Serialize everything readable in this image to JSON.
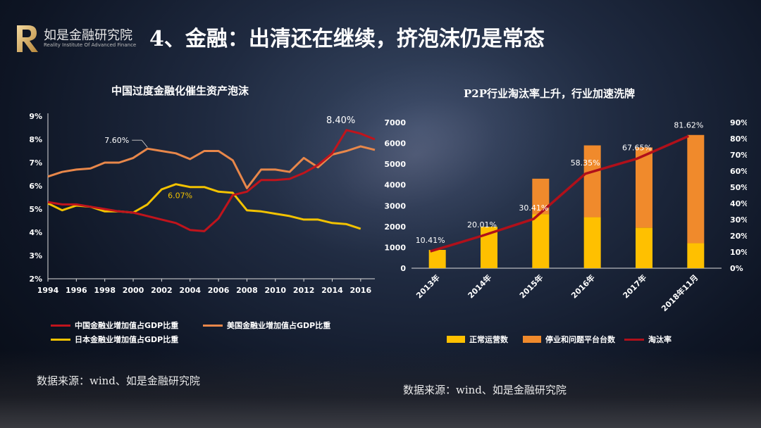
{
  "header": {
    "logo_name": "如是金融研究院",
    "logo_sub": "Reality Institute Of Advanced Finance",
    "title": "4、金融：出清还在继续，挤泡沫仍是常态"
  },
  "left_chart": {
    "title": "中国过度金融化催生资产泡沫",
    "source": "数据来源：wind、如是金融研究院"
  },
  "right_chart": {
    "title": "P2P行业淘汰率上升，行业加速洗牌",
    "source": "数据来源：wind、如是金融研究院"
  },
  "colors": {
    "china": "#c0141c",
    "usa": "#e8874a",
    "japan": "#f2c200",
    "normal": "#ffc000",
    "problem": "#f08a2c",
    "rate": "#b0101a"
  },
  "chart_data": [
    {
      "type": "line",
      "x": [
        1994,
        1995,
        1996,
        1997,
        1998,
        1999,
        2000,
        2001,
        2002,
        2003,
        2004,
        2005,
        2006,
        2007,
        2008,
        2009,
        2010,
        2011,
        2012,
        2013,
        2014,
        2015,
        2016,
        2017
      ],
      "xticks": [
        "1994",
        "1996",
        "1998",
        "2000",
        "2002",
        "2004",
        "2006",
        "2008",
        "2010",
        "2012",
        "2014",
        "2016"
      ],
      "yticks": [
        "2%",
        "3%",
        "4%",
        "5%",
        "6%",
        "7%",
        "8%",
        "9%"
      ],
      "ylim": [
        2,
        9
      ],
      "series": [
        {
          "name": "中国金融业增加值占GDP比重",
          "values": [
            5.3,
            5.2,
            5.2,
            5.1,
            5.0,
            4.9,
            4.85,
            4.7,
            4.55,
            4.4,
            4.1,
            4.05,
            4.6,
            5.6,
            5.75,
            6.25,
            6.25,
            6.3,
            6.55,
            6.9,
            7.4,
            8.4,
            8.25,
            8.0
          ]
        },
        {
          "name": "美国金融业增加值占GDP比重",
          "values": [
            6.4,
            6.6,
            6.7,
            6.75,
            7.0,
            7.0,
            7.2,
            7.6,
            7.5,
            7.4,
            7.15,
            7.5,
            7.5,
            7.1,
            5.9,
            6.7,
            6.7,
            6.6,
            7.2,
            6.8,
            7.35,
            7.5,
            7.7,
            7.55
          ]
        },
        {
          "name": "日本金融业增加值占GDP比重",
          "values": [
            5.25,
            4.95,
            5.15,
            5.1,
            4.9,
            4.9,
            4.85,
            5.2,
            5.85,
            6.07,
            5.95,
            5.95,
            5.75,
            5.7,
            4.95,
            4.9,
            4.8,
            4.7,
            4.55,
            4.55,
            4.4,
            4.35,
            4.15,
            null
          ]
        }
      ],
      "annotations": [
        {
          "label": "7.60%",
          "x": 2001,
          "y": 7.6
        },
        {
          "label": "6.07%",
          "x": 2003,
          "y": 6.07
        },
        {
          "label": "8.40%",
          "x": 2015,
          "y": 8.4
        }
      ]
    },
    {
      "type": "bar",
      "categories": [
        "2013年",
        "2014年",
        "2015年",
        "2016年",
        "2017年",
        "2018年11月"
      ],
      "series": [
        {
          "name": "正常运营数",
          "values": [
            880,
            1990,
            2600,
            2450,
            1950,
            1200
          ]
        },
        {
          "name": "停业和问题平台台数",
          "values": [
            0,
            0,
            1700,
            3450,
            3850,
            5200
          ]
        },
        {
          "name": "淘汰率",
          "values": [
            10.41,
            20.01,
            30.41,
            58.35,
            67.65,
            81.62
          ]
        }
      ],
      "rate_labels": [
        "10.41%",
        "20.01%",
        "30.41%",
        "58.35%",
        "67.65%",
        "81.62%"
      ],
      "y_left_ticks": [
        "0",
        "1000",
        "2000",
        "3000",
        "4000",
        "5000",
        "6000",
        "7000"
      ],
      "y_left_lim": [
        0,
        7000
      ],
      "y_right_ticks": [
        "0%",
        "10%",
        "20%",
        "30%",
        "40%",
        "50%",
        "60%",
        "70%",
        "80%",
        "90%"
      ],
      "y_right_lim": [
        0,
        90
      ]
    }
  ]
}
